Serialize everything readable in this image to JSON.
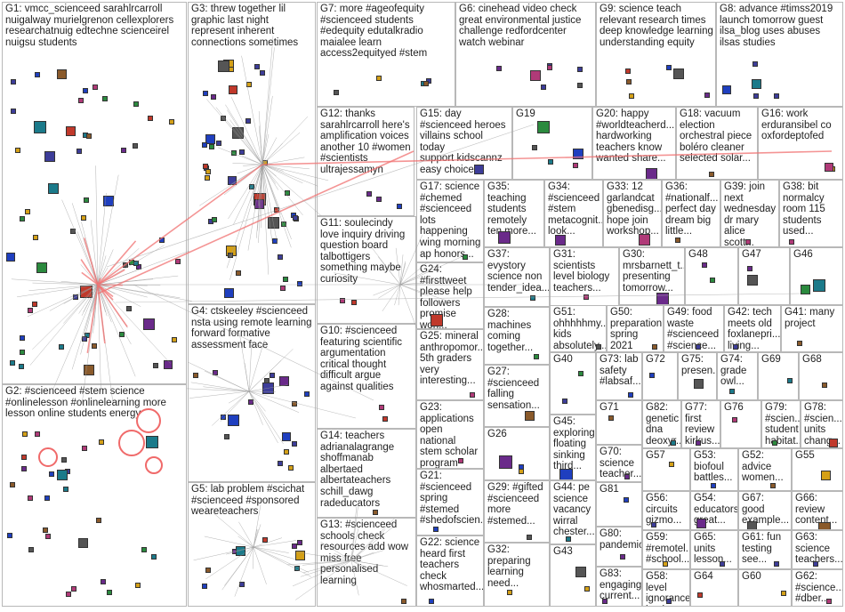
{
  "groups": [
    {
      "id": "G1",
      "label": "vmcc_scienceed sarahlrcarroll\nnuigalway murielgrenon cellexplorers\nresearchatnuig edtechne scienceirel\nnuigsu students"
    },
    {
      "id": "G2",
      "label": "#scienceed #stem science\n#onlinelesson #onlinelearning more\nlesson online students energy"
    },
    {
      "id": "G3",
      "label": "threw together lil\ngraphic last night\nrepresent inherent\nconnections sometimes"
    },
    {
      "id": "G4",
      "label": "ctskeeley #scienceed\nnsta using remote learning\nforward formative\nassessment face"
    },
    {
      "id": "G5",
      "label": "lab problem #scichat\n#scienceed #sponsored\nweareteachers"
    },
    {
      "id": "G6",
      "label": "cinehead video check\ngreat environmental justice\nchallenge redfordcenter\nwatch webinar"
    },
    {
      "id": "G7",
      "label": "more #ageofequity\n#scienceed students\n#edequity edutalkradio\nmaialee learn\naccess2equityed #stem"
    },
    {
      "id": "G8",
      "label": "advance #timss2019\nlaunch tomorrow guest\nilsa_blog uses abuses\nilsas studies"
    },
    {
      "id": "G9",
      "label": "science teach\nrelevant research times\ndeep knowledge learning\nunderstanding equity"
    },
    {
      "id": "G10",
      "label": "#scienceed\nfeaturing scientific\nargumentation\ncritical thought\ndifficult argue\nagainst qualities"
    },
    {
      "id": "G11",
      "label": "soulecindy\nlove inquiry driving\nquestion board\ntalbottigers\nsomething maybe\ncuriosity"
    },
    {
      "id": "G12",
      "label": "thanks\nsarahlrcarroll here's\namplification voices\nanother 10 #women\n#scientists\nultrajessamyn"
    },
    {
      "id": "G13",
      "label": "#scienceed\nschools check\nresources add wow\nmiss free\npersonalised\nlearning"
    },
    {
      "id": "G14",
      "label": "teachers\nadrianalagrange\nshoffmanab\nalbertaed\nalbertateachers\nschill_dawg\nradeducators"
    },
    {
      "id": "G15",
      "label": "day #scienceed heroes\nvillains school today\nsupport kidscannz\neasy choice"
    },
    {
      "id": "G16",
      "label": "work\nerduransibel co\noxfordeptofed"
    },
    {
      "id": "G17",
      "label": "science\n#chemed\n#scienceed\nlots happening\nwing morning\nap honors..."
    },
    {
      "id": "G18",
      "label": "vacuum\nelection\norchestral piece\nboléro cleaner\nselected solar..."
    },
    {
      "id": "G19",
      "label": ""
    },
    {
      "id": "G20",
      "label": "happy\n#worldteacherd...\nhardworking\nteachers know\nwanted share..."
    },
    {
      "id": "G21",
      "label": "#scienceed\nspring\n#stemed\n#shedofscien..."
    },
    {
      "id": "G22",
      "label": "science\nheard first\nteachers\ncheck\nwhosmarted..."
    },
    {
      "id": "G23",
      "label": "applications\nopen national\nstem scholar\nprogram ten..."
    },
    {
      "id": "G24",
      "label": "#firsttweet\nplease help\nfollowers\npromise won..."
    },
    {
      "id": "G25",
      "label": "mineral\nanthropomor...\n5th graders\nvery\ninteresting..."
    },
    {
      "id": "G26",
      "label": ""
    },
    {
      "id": "G27",
      "label": "#scienceed\nfalling\nsensation..."
    },
    {
      "id": "G28",
      "label": "machines\ncoming\ntogether..."
    },
    {
      "id": "G29",
      "label": "#gifted\n#scienceed\nmore\n#stemed..."
    },
    {
      "id": "G30",
      "label": "mrsbarnett_t...\npresenting\ntomorrow..."
    },
    {
      "id": "G31",
      "label": "scientists\nlevel biology\nteachers..."
    },
    {
      "id": "G32",
      "label": "preparing\nlearning\nneed..."
    },
    {
      "id": "G33",
      "label": "12\ngarlandcat\ngbenedisg...\nhope join\nworkshop..."
    },
    {
      "id": "G34",
      "label": "#scienceed\n#stem\nmetacognit...\nlook..."
    },
    {
      "id": "G35",
      "label": "teaching\nstudents\nremotely\nten more..."
    },
    {
      "id": "G36",
      "label": "#nationalf...\nperfect day\ndream big\nlittle..."
    },
    {
      "id": "G37",
      "label": "evystory\nscience non\ntender_idea..."
    },
    {
      "id": "G38",
      "label": "bit\nnormalcy\nroom 115\nstudents\nused..."
    },
    {
      "id": "G39",
      "label": "join\nnext\nwednesday\ndr mary\nalice scott..."
    },
    {
      "id": "G40",
      "label": ""
    },
    {
      "id": "G41",
      "label": "many\nproject"
    },
    {
      "id": "G42",
      "label": "tech\nmeets old\nfoxlanepri...\nliving..."
    },
    {
      "id": "G43",
      "label": ""
    },
    {
      "id": "G44",
      "label": "pe\nscience\nvacancy\nwirral\nchester..."
    },
    {
      "id": "G45",
      "label": "exploring\nfloating\nsinking\nthird..."
    },
    {
      "id": "G46",
      "label": ""
    },
    {
      "id": "G47",
      "label": ""
    },
    {
      "id": "G48",
      "label": ""
    },
    {
      "id": "G49",
      "label": "food\nwaste\n#scienceed\n#science...\n#scienced..."
    },
    {
      "id": "G50",
      "label": "preparation\nspring 2021\nadvising..."
    },
    {
      "id": "G51",
      "label": "ohhhhhmy...\nkids\nabsolutely..."
    },
    {
      "id": "G52",
      "label": "advice\nwomen..."
    },
    {
      "id": "G53",
      "label": "biofoul\nbattles..."
    },
    {
      "id": "G54",
      "label": "educators\ngreat..."
    },
    {
      "id": "G55",
      "label": ""
    },
    {
      "id": "G56",
      "label": "circuits\ngizmo..."
    },
    {
      "id": "G57",
      "label": ""
    },
    {
      "id": "G58",
      "label": "level\nignorance\nbasic..."
    },
    {
      "id": "G59",
      "label": "#remotel...\n#school..."
    },
    {
      "id": "G60",
      "label": ""
    },
    {
      "id": "G61",
      "label": "fun\ntesting\nsee..."
    },
    {
      "id": "G62",
      "label": "#science...\n#dber..."
    },
    {
      "id": "G63",
      "label": "science\nteachers..."
    },
    {
      "id": "G64",
      "label": ""
    },
    {
      "id": "G65",
      "label": "units\nlesson..."
    },
    {
      "id": "G66",
      "label": "review\ncontent..."
    },
    {
      "id": "G67",
      "label": "good\nexample..."
    },
    {
      "id": "G68",
      "label": ""
    },
    {
      "id": "G69",
      "label": ""
    },
    {
      "id": "G70",
      "label": "science\nteacher..."
    },
    {
      "id": "G71",
      "label": ""
    },
    {
      "id": "G72",
      "label": ""
    },
    {
      "id": "G73",
      "label": "lab\nsafety\n#labsaf..."
    },
    {
      "id": "G74",
      "label": "grade\nowl..."
    },
    {
      "id": "G75",
      "label": "presen..."
    },
    {
      "id": "G76",
      "label": ""
    },
    {
      "id": "G77",
      "label": "first\nreview\nkirkus..."
    },
    {
      "id": "G78",
      "label": "#scien...\nunits\nchang..."
    },
    {
      "id": "G79",
      "label": "#scien...\nstudent\nhabitat..."
    },
    {
      "id": "G80",
      "label": "pandemic..."
    },
    {
      "id": "G81",
      "label": ""
    },
    {
      "id": "G82",
      "label": "genetic\ndna\ndeoxyr..."
    },
    {
      "id": "G83",
      "label": "engaging\ncurrent..."
    }
  ]
}
